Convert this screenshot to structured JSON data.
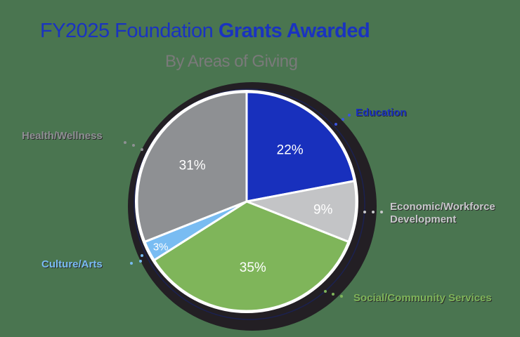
{
  "header": {
    "title_light": "FY2025 Foundation ",
    "title_bold": "Grants Awarded",
    "subtitle": "By Areas of Giving"
  },
  "colors": {
    "background": "#4a7550",
    "title": "#1a33c0",
    "subtitle": "#7a7a7a",
    "ring": "#231f24"
  },
  "chart_data": {
    "type": "pie",
    "title": "FY2025 Foundation Grants Awarded",
    "subtitle": "By Areas of Giving",
    "categories": [
      "Education",
      "Economic/Workforce Development",
      "Social/Community Services",
      "Culture/Arts",
      "Health/Wellness"
    ],
    "values": [
      22,
      9,
      35,
      3,
      31
    ],
    "value_labels": [
      "22%",
      "9%",
      "35%",
      "3%",
      "31%"
    ],
    "colors": [
      "#1830bd",
      "#c3c4c6",
      "#7fb55a",
      "#79bcf2",
      "#8e9093"
    ],
    "start_angle": "12 o'clock, clockwise",
    "legend_position": "outside labels with dotted leaders"
  },
  "labels": [
    {
      "text": "Education",
      "color": "#1a33c0"
    },
    {
      "text_line1": "Economic/Workforce",
      "text_line2": "Development",
      "color": "#c7c8ca"
    },
    {
      "text": "Social/Community Services",
      "color": "#7fb55a"
    },
    {
      "text": "Culture/Arts",
      "color": "#79bcf2"
    },
    {
      "text": "Health/Wellness",
      "color": "#8e9093"
    }
  ]
}
